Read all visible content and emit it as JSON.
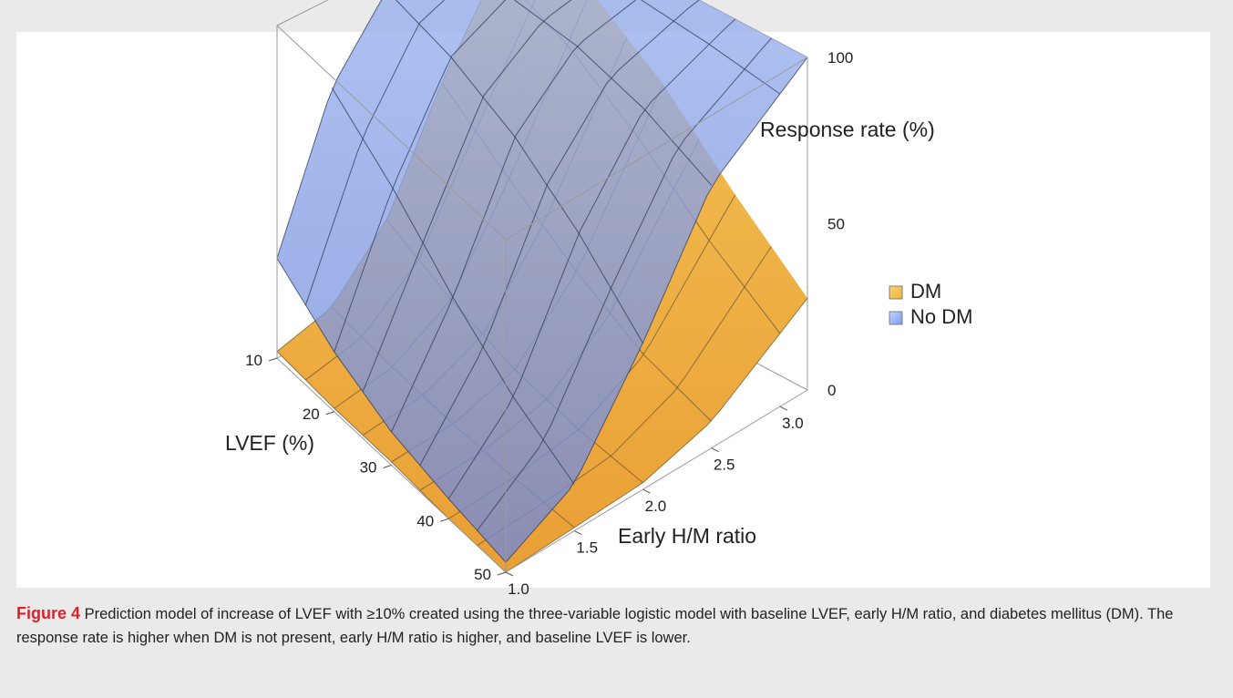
{
  "chart_data": {
    "type": "surface3d",
    "title": "",
    "xlabel": "LVEF (%)",
    "ylabel": "Early H/M ratio",
    "zlabel": "Response rate (%)",
    "x_ticks": [
      "10",
      "20",
      "30",
      "40",
      "50"
    ],
    "y_ticks": [
      "1.0",
      "1.5",
      "2.0",
      "2.5",
      "3.0"
    ],
    "z_ticks": [
      "0",
      "50",
      "100"
    ],
    "xlim": [
      10,
      50
    ],
    "ylim": [
      1.0,
      3.2
    ],
    "zlim": [
      0,
      100
    ],
    "legend_position": "right",
    "series": [
      {
        "name": "DM",
        "color": "#f2b33a",
        "x": [
          10,
          20,
          30,
          40,
          50
        ],
        "y": [
          1.0,
          1.5,
          2.0,
          2.5,
          3.0
        ],
        "z": [
          [
            2,
            7,
            25,
            58,
            84
          ],
          [
            1,
            4,
            15,
            42,
            73
          ],
          [
            1,
            2,
            8,
            27,
            57
          ],
          [
            0,
            1,
            4,
            15,
            38
          ],
          [
            0,
            1,
            2,
            8,
            22
          ]
        ]
      },
      {
        "name": "No DM",
        "color": "#7e9ef0",
        "x": [
          10,
          20,
          30,
          40,
          50
        ],
        "y": [
          1.0,
          1.5,
          2.0,
          2.5,
          3.0
        ],
        "z": [
          [
            30,
            73,
            94,
            99,
            100
          ],
          [
            18,
            58,
            88,
            97,
            100
          ],
          [
            10,
            40,
            78,
            95,
            99
          ],
          [
            6,
            25,
            63,
            89,
            97
          ],
          [
            3,
            14,
            44,
            79,
            94
          ]
        ]
      }
    ]
  },
  "caption": {
    "label": "Figure 4",
    "text": " Prediction model of increase of LVEF with ≥10% created using the three-variable logistic model with baseline LVEF, early H/M ratio, and diabetes mellitus (DM). The response rate is higher when DM is not present, early H/M ratio is higher, and baseline LVEF is lower."
  }
}
